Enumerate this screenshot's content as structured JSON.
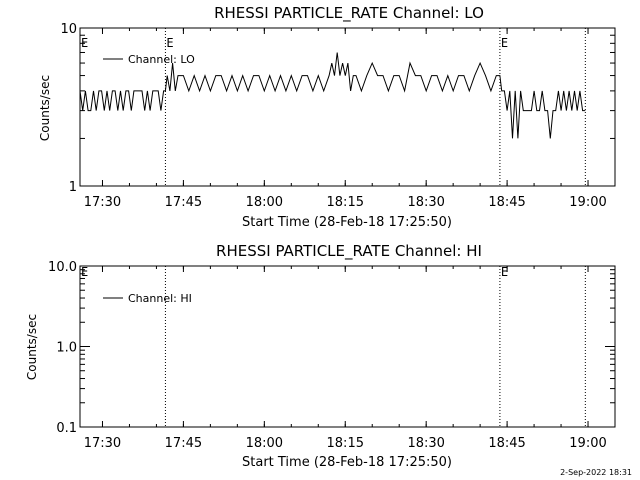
{
  "timestamp": "2-Sep-2022 18:31",
  "chart_data": [
    {
      "type": "line",
      "title": "RHESSI PARTICLE_RATE Channel: LO",
      "xlabel": "Start Time (28-Feb-18 17:25:50)",
      "ylabel": "Counts/sec",
      "y_scale": "log",
      "ylim": [
        1,
        10
      ],
      "yticks": [
        "1",
        "10"
      ],
      "xlim": [
        "17:25:50",
        "19:05:00"
      ],
      "xticks": [
        "17:30",
        "17:45",
        "18:00",
        "18:15",
        "18:30",
        "18:45",
        "19:00"
      ],
      "legend": "Channel: LO",
      "legend_position": "top-left",
      "event_lines": [
        {
          "time": "17:41:40",
          "label": "E"
        },
        {
          "time": "18:43:40",
          "label": "E"
        },
        {
          "time": "18:59:30",
          "label": ""
        }
      ],
      "event_label_at_start": "E",
      "series": [
        {
          "name": "Channel: LO",
          "x": [
            "17:25:50",
            "17:26:20",
            "17:26:50",
            "17:27:20",
            "17:27:50",
            "17:28:20",
            "17:28:50",
            "17:29:20",
            "17:29:50",
            "17:30:20",
            "17:30:50",
            "17:31:20",
            "17:31:50",
            "17:32:20",
            "17:32:50",
            "17:33:20",
            "17:33:50",
            "17:34:20",
            "17:34:50",
            "17:35:20",
            "17:35:50",
            "17:36:20",
            "17:36:50",
            "17:37:20",
            "17:37:50",
            "17:38:20",
            "17:38:50",
            "17:39:20",
            "17:39:50",
            "17:40:20",
            "17:40:50",
            "17:41:20",
            "17:41:40",
            "17:42:00",
            "17:42:30",
            "17:43:00",
            "17:43:30",
            "17:44:00",
            "17:44:30",
            "17:45:00",
            "17:46:00",
            "17:47:00",
            "17:48:00",
            "17:49:00",
            "17:50:00",
            "17:51:00",
            "17:52:00",
            "17:53:00",
            "17:54:00",
            "17:55:00",
            "17:56:00",
            "17:57:00",
            "17:58:00",
            "17:59:00",
            "18:00:00",
            "18:01:00",
            "18:02:00",
            "18:03:00",
            "18:04:00",
            "18:05:00",
            "18:06:00",
            "18:07:00",
            "18:08:00",
            "18:09:00",
            "18:10:00",
            "18:11:00",
            "18:12:00",
            "18:12:30",
            "18:13:00",
            "18:13:30",
            "18:14:00",
            "18:14:30",
            "18:15:00",
            "18:15:30",
            "18:16:00",
            "18:16:30",
            "18:17:00",
            "18:18:00",
            "18:19:00",
            "18:20:00",
            "18:21:00",
            "18:22:00",
            "18:23:00",
            "18:24:00",
            "18:25:00",
            "18:26:00",
            "18:27:00",
            "18:28:00",
            "18:29:00",
            "18:30:00",
            "18:31:00",
            "18:32:00",
            "18:33:00",
            "18:34:00",
            "18:35:00",
            "18:36:00",
            "18:37:00",
            "18:38:00",
            "18:39:00",
            "18:40:00",
            "18:41:00",
            "18:42:00",
            "18:43:00",
            "18:43:40",
            "18:44:00",
            "18:44:30",
            "18:45:00",
            "18:45:30",
            "18:46:00",
            "18:46:30",
            "18:47:00",
            "18:47:30",
            "18:48:00",
            "18:48:30",
            "18:49:00",
            "18:49:30",
            "18:50:00",
            "18:50:30",
            "18:51:00",
            "18:51:30",
            "18:52:00",
            "18:52:30",
            "18:53:00",
            "18:53:30",
            "18:54:00",
            "18:54:30",
            "18:55:00",
            "18:55:30",
            "18:56:00",
            "18:56:30",
            "18:57:00",
            "18:57:30",
            "18:58:00",
            "18:58:30",
            "18:59:00",
            "18:59:30"
          ],
          "y": [
            4,
            3,
            4,
            3,
            3,
            4,
            3,
            4,
            4,
            3,
            4,
            3,
            4,
            4,
            3,
            4,
            3,
            4,
            4,
            3,
            4,
            4,
            4,
            4,
            3,
            4,
            3,
            4,
            4,
            4,
            3,
            4,
            4,
            5,
            4,
            6,
            4,
            5,
            5,
            5,
            4,
            5,
            4,
            5,
            4,
            5,
            5,
            4,
            5,
            4,
            5,
            4,
            5,
            5,
            4,
            5,
            4,
            5,
            4,
            5,
            4,
            5,
            5,
            4,
            5,
            4,
            5,
            6,
            5,
            7,
            5,
            6,
            5,
            6,
            4,
            5,
            5,
            4,
            5,
            6,
            5,
            5,
            4,
            5,
            5,
            4,
            6,
            5,
            5,
            4,
            5,
            5,
            4,
            5,
            4,
            5,
            5,
            4,
            5,
            6,
            5,
            4,
            5,
            5,
            4,
            4,
            3,
            4,
            2,
            4,
            2,
            4,
            3,
            3,
            3,
            3,
            4,
            3,
            3,
            4,
            3,
            3,
            2,
            3,
            3,
            4,
            3,
            4,
            3,
            4,
            3,
            4,
            3,
            4,
            3,
            3
          ]
        }
      ]
    },
    {
      "type": "line",
      "title": "RHESSI PARTICLE_RATE Channel: HI",
      "xlabel": "Start Time (28-Feb-18 17:25:50)",
      "ylabel": "Counts/sec",
      "y_scale": "log",
      "ylim": [
        0.1,
        10
      ],
      "yticks": [
        "0.1",
        "1.0",
        "10.0"
      ],
      "xlim": [
        "17:25:50",
        "19:05:00"
      ],
      "xticks": [
        "17:30",
        "17:45",
        "18:00",
        "18:15",
        "18:30",
        "18:45",
        "19:00"
      ],
      "legend": "Channel: HI",
      "legend_position": "top-left",
      "event_lines": [
        {
          "time": "17:41:40",
          "label": ""
        },
        {
          "time": "18:43:40",
          "label": "E"
        },
        {
          "time": "18:59:30",
          "label": ""
        }
      ],
      "event_label_at_start": "E",
      "series": [
        {
          "name": "Channel: HI",
          "x": [],
          "y": []
        }
      ]
    }
  ]
}
